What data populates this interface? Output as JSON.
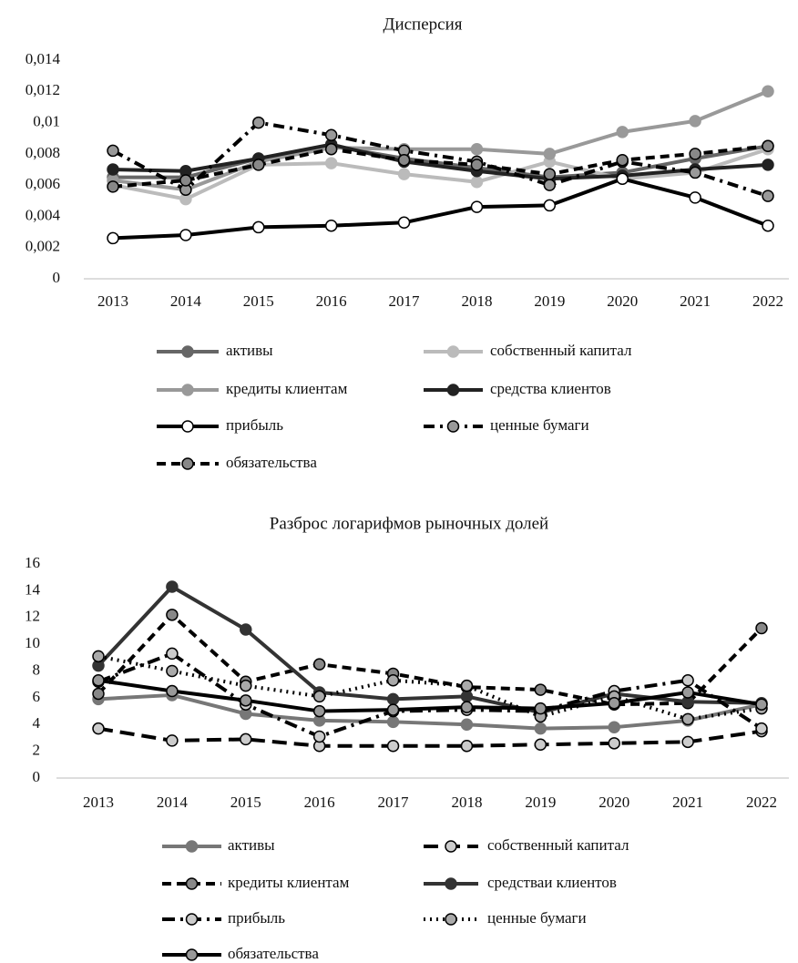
{
  "chart_data": [
    {
      "type": "line",
      "title": "Дисперсия",
      "categories": [
        "2013",
        "2014",
        "2015",
        "2016",
        "2017",
        "2018",
        "2019",
        "2020",
        "2021",
        "2022"
      ],
      "ylim": [
        0,
        0.014
      ],
      "yticks": [
        0,
        {
          "value": 0.002,
          "label": "0,002"
        },
        {
          "value": 0.004,
          "label": "0,004"
        },
        {
          "value": 0.006,
          "label": "0,006"
        },
        {
          "value": 0.008,
          "label": "0,008"
        },
        {
          "value": 0.01,
          "label": "0,01"
        },
        {
          "value": 0.012,
          "label": "0,012"
        },
        {
          "value": 0.014,
          "label": "0,014"
        }
      ],
      "grid": false,
      "series": [
        {
          "name": "активы",
          "color": "#666666",
          "marker_color": "#666666",
          "dash": "none",
          "values": [
            0.0065,
            0.0065,
            0.0077,
            0.0085,
            0.0077,
            0.0071,
            0.0065,
            0.0068,
            0.0077,
            0.0085
          ]
        },
        {
          "name": "собственный капитал",
          "color": "#bbbbbb",
          "marker_color": "#bbbbbb",
          "dash": "none",
          "values": [
            0.006,
            0.0051,
            0.0073,
            0.0074,
            0.0067,
            0.0062,
            0.0075,
            0.0064,
            0.0068,
            0.0083
          ]
        },
        {
          "name": "кредиты клиентам",
          "color": "#999999",
          "marker_color": "#999999",
          "dash": "none",
          "values": [
            0.0063,
            0.0057,
            0.0075,
            0.0084,
            0.0083,
            0.0083,
            0.008,
            0.0094,
            0.0101,
            0.012
          ]
        },
        {
          "name": "средства клиентов",
          "color": "#222222",
          "marker_color": "#222222",
          "dash": "none",
          "values": [
            0.007,
            0.0069,
            0.0077,
            0.0086,
            0.0075,
            0.0069,
            0.0064,
            0.0066,
            0.007,
            0.0073
          ]
        },
        {
          "name": "прибыль",
          "color": "#000000",
          "marker_color": "#ffffff",
          "dash": "none",
          "values": [
            0.0026,
            0.0028,
            0.0033,
            0.0034,
            0.0036,
            0.0046,
            0.0047,
            0.0064,
            0.0052,
            0.0034
          ]
        },
        {
          "name": "ценные бумаги",
          "color": "#000000",
          "marker_color": "#999999",
          "dash": "12,6,3,6",
          "values": [
            0.0082,
            0.0057,
            0.01,
            0.0092,
            0.0082,
            0.0075,
            0.006,
            0.0075,
            0.0068,
            0.0053
          ]
        },
        {
          "name": "обязательства",
          "color": "#000000",
          "marker_color": "#888888",
          "dash": "10,6",
          "values": [
            0.0059,
            0.0063,
            0.0073,
            0.0083,
            0.0076,
            0.0073,
            0.0067,
            0.0076,
            0.008,
            0.0085
          ]
        }
      ]
    },
    {
      "type": "line",
      "title": "Разброс логарифмов рыночных долей",
      "categories": [
        "2013",
        "2014",
        "2015",
        "2016",
        "2017",
        "2018",
        "2019",
        "2020",
        "2021",
        "2022"
      ],
      "ylim": [
        0,
        16
      ],
      "yticks": [
        0,
        2,
        4,
        6,
        8,
        10,
        12,
        14,
        16
      ],
      "grid": false,
      "series": [
        {
          "name": "активы",
          "color": "#777777",
          "marker_color": "#777777",
          "dash": "none",
          "values": [
            5.9,
            6.2,
            4.8,
            4.3,
            4.2,
            4.0,
            3.7,
            3.8,
            4.3,
            5.5
          ]
        },
        {
          "name": "собственный капитал",
          "color": "#000000",
          "marker_color": "#cccccc",
          "dash": "16,8",
          "values": [
            3.7,
            2.8,
            2.9,
            2.4,
            2.4,
            2.4,
            2.5,
            2.6,
            2.7,
            3.5
          ]
        },
        {
          "name": "кредиты клиентам",
          "color": "#000000",
          "marker_color": "#888888",
          "dash": "10,6",
          "values": [
            6.3,
            12.2,
            7.2,
            8.5,
            7.8,
            6.8,
            6.6,
            5.5,
            5.6,
            11.2
          ]
        },
        {
          "name": "средстваи клиентов",
          "color": "#333333",
          "marker_color": "#333333",
          "dash": "none",
          "values": [
            8.4,
            14.3,
            11.1,
            6.4,
            5.9,
            6.1,
            4.9,
            6.3,
            5.7,
            5.6
          ]
        },
        {
          "name": "прибыль",
          "color": "#000000",
          "marker_color": "#cccccc",
          "dash": "14,6,3,6",
          "values": [
            7.2,
            9.3,
            5.5,
            3.1,
            5.0,
            5.1,
            5.0,
            6.5,
            7.3,
            3.7
          ]
        },
        {
          "name": "ценные бумаги",
          "color": "#000000",
          "marker_color": "#aaaaaa",
          "dash": "2,5",
          "values": [
            9.1,
            8.0,
            6.9,
            6.1,
            7.3,
            6.9,
            4.6,
            6.1,
            4.4,
            5.2
          ]
        },
        {
          "name": "обязательства",
          "color": "#000000",
          "marker_color": "#999999",
          "dash": "none",
          "values": [
            7.3,
            6.5,
            5.8,
            5.0,
            5.1,
            5.3,
            5.2,
            5.6,
            6.4,
            5.5
          ]
        }
      ]
    }
  ]
}
